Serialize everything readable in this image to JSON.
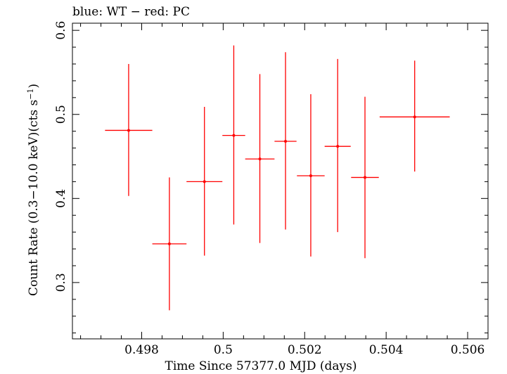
{
  "chart_data": {
    "type": "scatter",
    "title": "blue: WT − red: PC",
    "xlabel": "Time Since 57377.0 MJD (days)",
    "ylabel_main": "Count Rate (0.3−10.0 keV)(cts s",
    "ylabel_sup": "−1",
    "ylabel_close": ")",
    "xlim": [
      0.4963,
      0.5065
    ],
    "ylim": [
      0.233,
      0.6085
    ],
    "x_ticks": [
      0.498,
      0.5,
      0.502,
      0.504,
      0.506
    ],
    "x_tick_labels": [
      "0.498",
      "0.5",
      "0.502",
      "0.504",
      "0.506"
    ],
    "y_ticks": [
      0.3,
      0.4,
      0.5,
      0.6
    ],
    "y_tick_labels": [
      "0.3",
      "0.4",
      "0.5",
      "0.6"
    ],
    "grid": false,
    "series": [
      {
        "color": "#ff0000",
        "points": [
          {
            "x": 0.49768,
            "xerr": 0.00058,
            "y": 0.481,
            "ylo": 0.403,
            "yhi": 0.56
          },
          {
            "x": 0.49868,
            "xerr": 0.00042,
            "y": 0.346,
            "ylo": 0.267,
            "yhi": 0.425
          },
          {
            "x": 0.49954,
            "xerr": 0.00044,
            "y": 0.42,
            "ylo": 0.332,
            "yhi": 0.509
          },
          {
            "x": 0.50026,
            "xerr": 0.00028,
            "y": 0.475,
            "ylo": 0.369,
            "yhi": 0.582
          },
          {
            "x": 0.5009,
            "xerr": 0.00036,
            "y": 0.447,
            "ylo": 0.347,
            "yhi": 0.548
          },
          {
            "x": 0.50153,
            "xerr": 0.00027,
            "y": 0.468,
            "ylo": 0.363,
            "yhi": 0.574
          },
          {
            "x": 0.50215,
            "xerr": 0.00034,
            "y": 0.427,
            "ylo": 0.331,
            "yhi": 0.524
          },
          {
            "x": 0.50281,
            "xerr": 0.00032,
            "y": 0.462,
            "ylo": 0.36,
            "yhi": 0.566
          },
          {
            "x": 0.50348,
            "xerr": 0.00034,
            "y": 0.425,
            "ylo": 0.329,
            "yhi": 0.521
          },
          {
            "x": 0.5047,
            "xerr": 0.00086,
            "y": 0.497,
            "ylo": 0.432,
            "yhi": 0.564
          }
        ]
      }
    ]
  }
}
